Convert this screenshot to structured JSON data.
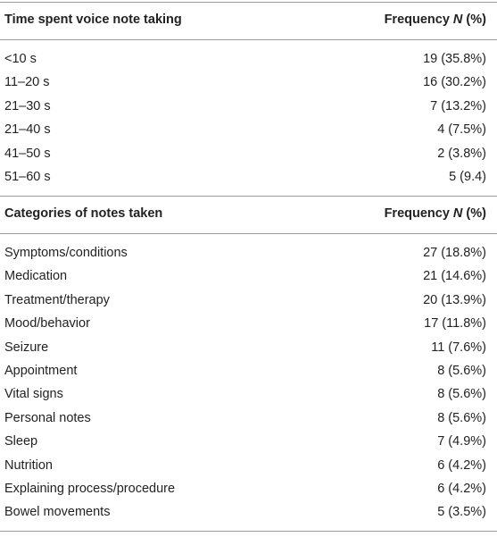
{
  "sections": [
    {
      "header": {
        "label": "Time spent voice note taking",
        "frequency": [
          "Frequency ",
          "N",
          " (%)"
        ]
      },
      "rows": [
        [
          "<10 s",
          "19 (35.8%)"
        ],
        [
          "11–20 s",
          "16 (30.2%)"
        ],
        [
          "21–30 s",
          "7 (13.2%)"
        ],
        [
          "21–40 s",
          "4 (7.5%)"
        ],
        [
          "41–50 s",
          "2 (3.8%)"
        ],
        [
          "51–60 s",
          "5 (9.4)"
        ]
      ]
    },
    {
      "header": {
        "label": "Categories of notes taken",
        "frequency": [
          "Frequency ",
          "N",
          " (%)"
        ]
      },
      "rows": [
        [
          "Symptoms/conditions",
          "27 (18.8%)"
        ],
        [
          "Medication",
          "21 (14.6%)"
        ],
        [
          "Treatment/therapy",
          "20 (13.9%)"
        ],
        [
          "Mood/behavior",
          "17 (11.8%)"
        ],
        [
          "Seizure",
          "11 (7.6%)"
        ],
        [
          "Appointment",
          "8 (5.6%)"
        ],
        [
          "Vital signs",
          "8 (5.6%)"
        ],
        [
          "Personal notes",
          "8 (5.6%)"
        ],
        [
          "Sleep",
          "7 (4.9%)"
        ],
        [
          "Nutrition",
          "6 (4.2%)"
        ],
        [
          "Explaining process/procedure",
          "6 (4.2%)"
        ],
        [
          "Bowel movements",
          "5 (3.5%)"
        ]
      ]
    }
  ]
}
